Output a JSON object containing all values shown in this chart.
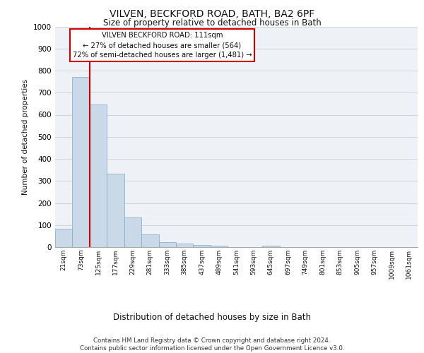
{
  "title1": "VILVEN, BECKFORD ROAD, BATH, BA2 6PF",
  "title2": "Size of property relative to detached houses in Bath",
  "xlabel": "Distribution of detached houses by size in Bath",
  "ylabel": "Number of detached properties",
  "bin_labels": [
    "21sqm",
    "73sqm",
    "125sqm",
    "177sqm",
    "229sqm",
    "281sqm",
    "333sqm",
    "385sqm",
    "437sqm",
    "489sqm",
    "541sqm",
    "593sqm",
    "645sqm",
    "697sqm",
    "749sqm",
    "801sqm",
    "853sqm",
    "905sqm",
    "957sqm",
    "1009sqm",
    "1061sqm"
  ],
  "bar_values": [
    83,
    770,
    645,
    333,
    135,
    58,
    22,
    17,
    11,
    7,
    0,
    0,
    8,
    0,
    0,
    0,
    0,
    0,
    0,
    0,
    0
  ],
  "bar_color": "#c9d9e8",
  "bar_edge_color": "#7aaac8",
  "vline_color": "#cc0000",
  "annotation_text": "VILVEN BECKFORD ROAD: 111sqm\n← 27% of detached houses are smaller (564)\n72% of semi-detached houses are larger (1,481) →",
  "annotation_box_color": "#ffffff",
  "annotation_box_edge": "#cc0000",
  "ylim": [
    0,
    1000
  ],
  "yticks": [
    0,
    100,
    200,
    300,
    400,
    500,
    600,
    700,
    800,
    900,
    1000
  ],
  "footer": "Contains HM Land Registry data © Crown copyright and database right 2024.\nContains public sector information licensed under the Open Government Licence v3.0.",
  "plot_bg_color": "#eef2f7"
}
